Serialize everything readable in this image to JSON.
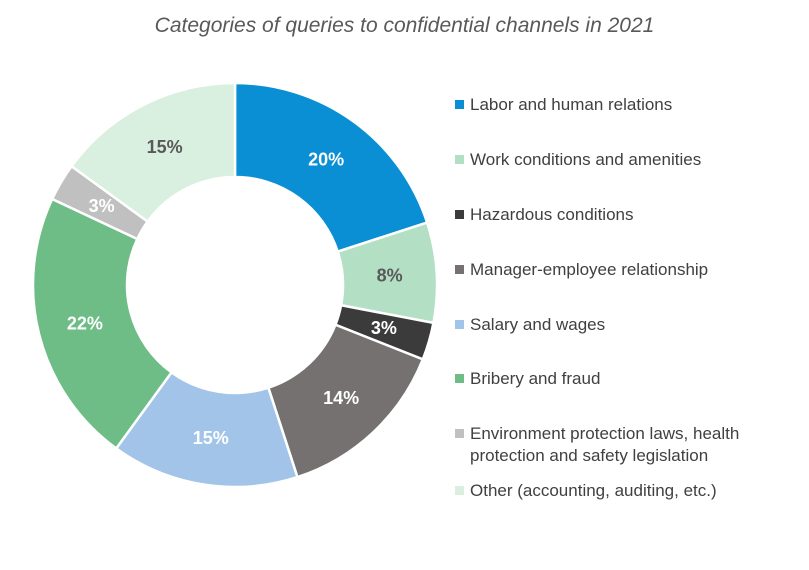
{
  "chart_data": {
    "type": "pie",
    "donut": true,
    "title": "Categories of queries to confidential channels in 2021",
    "categories": [
      "Labor and human relations",
      "Work conditions and amenities",
      "Hazardous conditions",
      "Manager-employee relationship",
      "Salary and wages",
      "Bribery and fraud",
      "Environment protection laws, health protection and safety legislation",
      "Other (accounting, auditing, etc.)"
    ],
    "values": [
      20,
      8,
      3,
      14,
      15,
      22,
      3,
      15
    ],
    "value_labels": [
      "20%",
      "8%",
      "3%",
      "14%",
      "15%",
      "22%",
      "3%",
      "15%"
    ],
    "colors": [
      "#0a8fd4",
      "#b3e0c5",
      "#3b3b3b",
      "#767171",
      "#a2c4e8",
      "#6ebd86",
      "#c0c0c0",
      "#d9efe0"
    ],
    "label_colors": [
      "#ffffff",
      "#595959",
      "#ffffff",
      "#ffffff",
      "#ffffff",
      "#ffffff",
      "#ffffff",
      "#595959"
    ],
    "legend_position": "right"
  }
}
